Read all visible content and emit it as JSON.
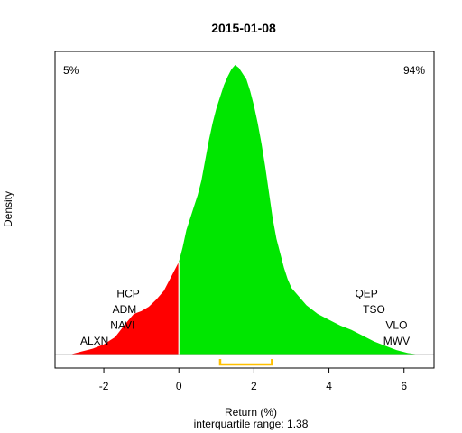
{
  "chart_data": {
    "type": "area",
    "title": "2015-01-08",
    "xlabel": "Return (%)",
    "ylabel": "Density",
    "subtitle": "interquartile range: 1.38",
    "xlim": [
      -3.3,
      6.8
    ],
    "x_ticks": [
      -2,
      0,
      2,
      4,
      6
    ],
    "tick_labels": [
      "-2",
      "0",
      "2",
      "4",
      "6"
    ],
    "split_x": 0,
    "corner_left": {
      "text": "5%",
      "color": "#ff0000"
    },
    "corner_right": {
      "text": "94%",
      "color": "#228b22"
    },
    "fill_negative": "#ff0000",
    "fill_positive": "#00e600",
    "baseline_color": "#bebebe",
    "iqr_color": "#ffc000",
    "iqr": [
      1.1,
      2.48
    ],
    "density": {
      "x": [
        -2.9,
        -2.6,
        -2.3,
        -2.0,
        -1.7,
        -1.4,
        -1.2,
        -1.0,
        -0.8,
        -0.6,
        -0.4,
        -0.2,
        0.0,
        0.1,
        0.2,
        0.3,
        0.4,
        0.5,
        0.6,
        0.7,
        0.8,
        0.9,
        1.0,
        1.1,
        1.2,
        1.3,
        1.4,
        1.5,
        1.6,
        1.7,
        1.8,
        1.9,
        2.0,
        2.1,
        2.2,
        2.3,
        2.4,
        2.5,
        2.6,
        2.7,
        2.8,
        2.9,
        3.0,
        3.2,
        3.4,
        3.7,
        4.0,
        4.3,
        4.6,
        4.9,
        5.2,
        5.5,
        5.8,
        6.1,
        6.4
      ],
      "y": [
        0.0,
        0.01,
        0.02,
        0.035,
        0.06,
        0.11,
        0.14,
        0.15,
        0.165,
        0.19,
        0.22,
        0.27,
        0.32,
        0.37,
        0.43,
        0.47,
        0.51,
        0.55,
        0.6,
        0.67,
        0.74,
        0.8,
        0.85,
        0.89,
        0.93,
        0.96,
        0.985,
        1.0,
        0.99,
        0.97,
        0.95,
        0.91,
        0.86,
        0.8,
        0.73,
        0.65,
        0.56,
        0.47,
        0.4,
        0.35,
        0.3,
        0.26,
        0.23,
        0.2,
        0.17,
        0.14,
        0.12,
        0.1,
        0.085,
        0.065,
        0.045,
        0.03,
        0.015,
        0.005,
        0.0
      ]
    },
    "left_tickers": [
      {
        "label": "HCP",
        "x": -1.35,
        "row": 3
      },
      {
        "label": "ADM",
        "x": -1.45,
        "row": 2
      },
      {
        "label": "NAVI",
        "x": -1.5,
        "row": 1
      },
      {
        "label": "ALXN",
        "x": -2.25,
        "row": 0
      }
    ],
    "right_tickers": [
      {
        "label": "QEP",
        "x": 5.0,
        "row": 3
      },
      {
        "label": "TSO",
        "x": 5.2,
        "row": 2
      },
      {
        "label": "VLO",
        "x": 5.8,
        "row": 1
      },
      {
        "label": "MWV",
        "x": 5.8,
        "row": 0
      }
    ]
  }
}
